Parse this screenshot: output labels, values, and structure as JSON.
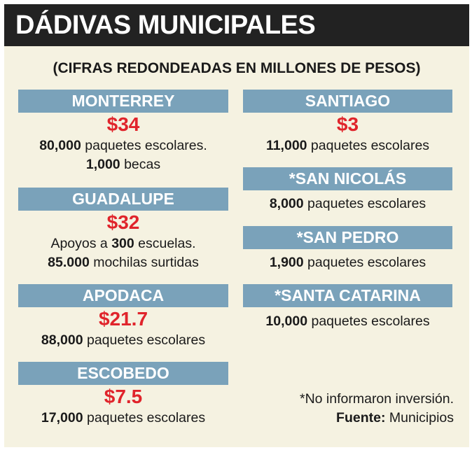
{
  "title": "DÁDIVAS MUNICIPALES",
  "subtitle": "(CIFRAS REDONDEADAS EN MILLONES DE PESOS)",
  "municipalities": [
    {
      "name": "MONTERREY",
      "amount": "$34",
      "lines": [
        {
          "bold": "80,000",
          "text": " paquetes escolares."
        },
        {
          "bold": "1,000",
          "text": " becas"
        }
      ]
    },
    {
      "name": "GUADALUPE",
      "amount": "$32",
      "lines": [
        {
          "pre": "Apoyos a ",
          "bold": "300",
          "text": " escuelas."
        },
        {
          "bold": "85.000",
          "text": " mochilas surtidas"
        }
      ]
    },
    {
      "name": "APODACA",
      "amount": "$21.7",
      "lines": [
        {
          "bold": "88,000",
          "text": " paquetes escolares"
        }
      ]
    },
    {
      "name": "ESCOBEDO",
      "amount": "$7.5",
      "lines": [
        {
          "bold": "17,000",
          "text": " paquetes escolares"
        }
      ]
    },
    {
      "name": "SANTIAGO",
      "amount": "$3",
      "lines": [
        {
          "bold": "11,000",
          "text": " paquetes escolares"
        }
      ]
    },
    {
      "name": "*SAN NICOLÁS",
      "lines": [
        {
          "bold": "8,000",
          "text": " paquetes escolares"
        }
      ]
    },
    {
      "name": "*SAN PEDRO",
      "lines": [
        {
          "bold": "1,900",
          "text": " paquetes escolares"
        }
      ]
    },
    {
      "name": "*SANTA CATARINA",
      "lines": [
        {
          "bold": "10,000",
          "text": " paquetes escolares"
        }
      ]
    }
  ],
  "footnote": "*No informaron inversión.",
  "source": {
    "label": "Fuente:",
    "value": " Municipios"
  },
  "colors": {
    "title_bar": "#222222",
    "background": "#f5f2e1",
    "header_bar": "#7aa2ba",
    "amount": "#e0242b"
  }
}
